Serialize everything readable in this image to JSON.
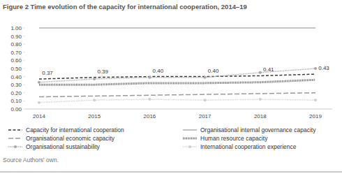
{
  "chart_data": {
    "type": "line",
    "title": "Figure 2 Time evolution of the capacity for international cooperation, 2014–19",
    "source": "Source Authors' own.",
    "categories": [
      "2014",
      "2015",
      "2016",
      "2017",
      "2018",
      "2019"
    ],
    "ylim": [
      0,
      1
    ],
    "yticks": [
      {
        "value": 0,
        "label": "0.00"
      },
      {
        "value": 0.1,
        "label": "0.10"
      },
      {
        "value": 0.2,
        "label": "0.20"
      },
      {
        "value": 0.3,
        "label": "0.30"
      },
      {
        "value": 0.4,
        "label": "0.40"
      },
      {
        "value": 0.5,
        "label": "0.50"
      },
      {
        "value": 0.6,
        "label": "0.60"
      },
      {
        "value": 0.7,
        "label": "0.70"
      },
      {
        "value": 0.8,
        "label": "0.80"
      },
      {
        "value": 0.9,
        "label": "0.90"
      },
      {
        "value": 1,
        "label": "1.00"
      }
    ],
    "grid": false,
    "legend": "bottom",
    "series": [
      {
        "name": "Capacity for international cooperation",
        "color": "#3a3a3a",
        "line_style": "dashed",
        "values": [
          0.37,
          0.39,
          0.4,
          0.4,
          0.41,
          0.43
        ],
        "data_labels": true,
        "value_labels": [
          "0.37",
          "0.39",
          "0.40",
          "0.40",
          "0.41",
          "0.43"
        ]
      },
      {
        "name": "Organisational internal governance capacity",
        "color": "#b3b3b3",
        "line_style": "solid",
        "values": [
          1.0,
          1.0,
          1.0,
          1.0,
          1.0,
          1.0
        ]
      },
      {
        "name": "Organisational economic capacity",
        "color": "#9a9a9a",
        "line_style": "longdash",
        "values": [
          0.15,
          0.16,
          0.17,
          0.18,
          0.19,
          0.2
        ]
      },
      {
        "name": "Human resource capacity",
        "color": "#6f6f6f",
        "line_style": "dotted",
        "values": [
          0.3,
          0.3,
          0.32,
          0.32,
          0.33,
          0.36
        ]
      },
      {
        "name": "Organisational sustainability",
        "color": "#a6a6a6",
        "line_style": "dotted",
        "marker": "circle",
        "values": [
          0.33,
          0.37,
          0.39,
          0.39,
          0.45,
          0.5
        ]
      },
      {
        "name": "International cooperation experience",
        "color": "#cfcfcf",
        "line_style": "dotted",
        "marker": "circle",
        "values": [
          0.08,
          0.11,
          0.12,
          0.11,
          0.12,
          0.11
        ]
      }
    ]
  }
}
